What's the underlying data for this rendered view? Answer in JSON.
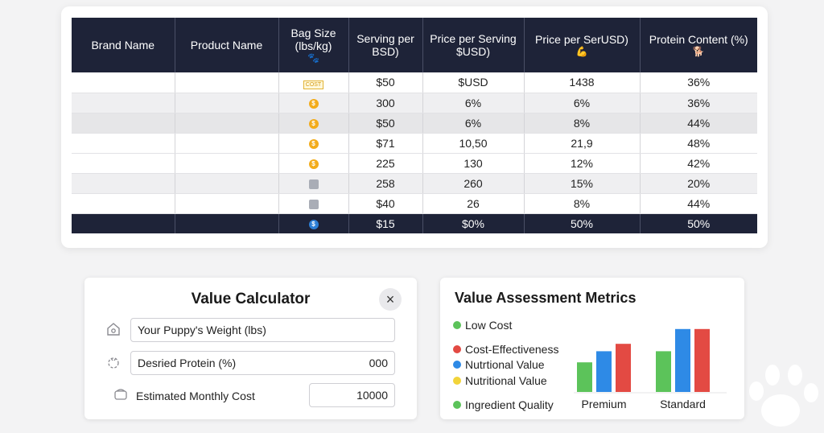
{
  "table": {
    "headers": [
      {
        "text": "Brand Name",
        "glyph": ""
      },
      {
        "text": "Product Name",
        "glyph": ""
      },
      {
        "text": "Bag Size (lbs/kg)",
        "glyph": "🐾"
      },
      {
        "text": "Serving per BSD)",
        "glyph": ""
      },
      {
        "text": "Price per Serving $USD)",
        "glyph": ""
      },
      {
        "text": "Price per SerUSD)",
        "glyph": "💪"
      },
      {
        "text": "Protein Content (%)",
        "glyph": "🐕"
      }
    ],
    "rows": [
      {
        "icon": "cost-tag-icon",
        "icon_text": "COST",
        "serving": "$50",
        "price_serving": "$USD",
        "price_ser": "1438",
        "protein": "36%"
      },
      {
        "icon": "coin-icon",
        "icon_text": "$",
        "serving": "300",
        "price_serving": "6%",
        "price_ser": "6%",
        "protein": "36%"
      },
      {
        "icon": "coin-icon",
        "icon_text": "$",
        "serving": "$50",
        "price_serving": "6%",
        "price_ser": "8%",
        "protein": "44%"
      },
      {
        "icon": "coin-icon",
        "icon_text": "$",
        "serving": "$71",
        "price_serving": "10,50",
        "price_ser": "21,9",
        "protein": "48%"
      },
      {
        "icon": "coin-icon",
        "icon_text": "$",
        "serving": "225",
        "price_serving": "130",
        "price_ser": "12%",
        "protein": "42%"
      },
      {
        "icon": "bag-icon",
        "icon_text": "",
        "serving": "258",
        "price_serving": "260",
        "price_ser": "15%",
        "protein": "20%"
      },
      {
        "icon": "bag-icon",
        "icon_text": "",
        "serving": "$40",
        "price_serving": "26",
        "price_ser": "8%",
        "protein": "44%"
      },
      {
        "icon": "blue-coin-icon",
        "icon_text": "$",
        "serving": "$15",
        "price_serving": "$0%",
        "price_ser": "50%",
        "protein": "50%"
      }
    ]
  },
  "calculator": {
    "title": "Value Calculator",
    "close_icon": "×",
    "weight_field": "Your Puppy's Weight (lbs)",
    "protein_field": "Desried Protein (%)",
    "protein_value": "000",
    "monthly_label": "Estimated Monthly Cost",
    "monthly_value": "10000"
  },
  "metrics": {
    "title": "Value Assessment Metrics",
    "legend": [
      {
        "label": "Low Cost",
        "color": "#5cc35a"
      },
      {
        "label": "Cost-Effectiveness",
        "color": "#e34a43"
      },
      {
        "label": "Nutrtional Value",
        "color": "#2e8ae6"
      },
      {
        "label": "Nutritional Value",
        "color": "#f2d43a"
      },
      {
        "label": "Ingredient Quality",
        "color": "#5cc35a"
      }
    ]
  },
  "chart_data": {
    "type": "bar",
    "categories": [
      "Premium",
      "Standard"
    ],
    "series": [
      {
        "values": [
          40,
          55
        ],
        "color": "#5cc35a"
      },
      {
        "values": [
          55,
          85
        ],
        "color": "#2e8ae6"
      },
      {
        "values": [
          65,
          85
        ],
        "color": "#e34a43"
      }
    ],
    "ylim": [
      0,
      100
    ],
    "title": "",
    "xlabel": "",
    "ylabel": ""
  }
}
